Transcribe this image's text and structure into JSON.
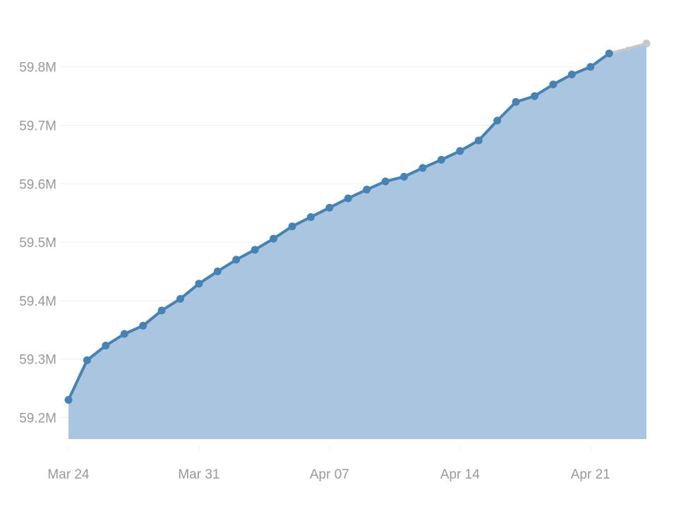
{
  "colors": {
    "line": "#4682b4",
    "area": "#a9c5df",
    "grid": "#eeeeee",
    "tick_text": "#999999",
    "partial_point": "#c7c7c7"
  },
  "chart_data": {
    "type": "area",
    "title": "",
    "xlabel": "",
    "ylabel": "",
    "grid": true,
    "legend": "none",
    "x_tick_labels": [
      "Mar 24",
      "Mar 31",
      "Apr 07",
      "Apr 14",
      "Apr 21"
    ],
    "y_tick_labels": [
      "59.2M",
      "59.3M",
      "59.4M",
      "59.5M",
      "59.6M",
      "59.7M",
      "59.8M"
    ],
    "y_ticks": [
      59200000,
      59300000,
      59400000,
      59500000,
      59600000,
      59700000,
      59800000
    ],
    "x_range": [
      "2020-03-24",
      "2020-04-24"
    ],
    "ylim": [
      59163000,
      59848000
    ],
    "series": [
      {
        "values": [
          {
            "x": "2020-03-24",
            "y": 59230000
          },
          {
            "x": "2020-03-25",
            "y": 59298000
          },
          {
            "x": "2020-03-26",
            "y": 59323000
          },
          {
            "x": "2020-03-27",
            "y": 59343000
          },
          {
            "x": "2020-03-28",
            "y": 59357000
          },
          {
            "x": "2020-03-29",
            "y": 59383000
          },
          {
            "x": "2020-03-30",
            "y": 59403000
          },
          {
            "x": "2020-03-31",
            "y": 59429000
          },
          {
            "x": "2020-04-01",
            "y": 59450000
          },
          {
            "x": "2020-04-02",
            "y": 59470000
          },
          {
            "x": "2020-04-03",
            "y": 59487000
          },
          {
            "x": "2020-04-04",
            "y": 59506000
          },
          {
            "x": "2020-04-05",
            "y": 59527000
          },
          {
            "x": "2020-04-06",
            "y": 59543000
          },
          {
            "x": "2020-04-07",
            "y": 59559000
          },
          {
            "x": "2020-04-08",
            "y": 59575000
          },
          {
            "x": "2020-04-09",
            "y": 59590000
          },
          {
            "x": "2020-04-10",
            "y": 59604000
          },
          {
            "x": "2020-04-11",
            "y": 59612000
          },
          {
            "x": "2020-04-12",
            "y": 59627000
          },
          {
            "x": "2020-04-13",
            "y": 59641000
          },
          {
            "x": "2020-04-14",
            "y": 59656000
          },
          {
            "x": "2020-04-15",
            "y": 59674000
          },
          {
            "x": "2020-04-16",
            "y": 59708000
          },
          {
            "x": "2020-04-17",
            "y": 59740000
          },
          {
            "x": "2020-04-18",
            "y": 59750000
          },
          {
            "x": "2020-04-19",
            "y": 59770000
          },
          {
            "x": "2020-04-20",
            "y": 59787000
          },
          {
            "x": "2020-04-21",
            "y": 59800000
          },
          {
            "x": "2020-04-22",
            "y": 59823000
          }
        ],
        "partial_values": [
          {
            "x": "2020-04-23",
            "y": 59831000
          },
          {
            "x": "2020-04-24",
            "y": 59840000
          }
        ]
      }
    ]
  }
}
